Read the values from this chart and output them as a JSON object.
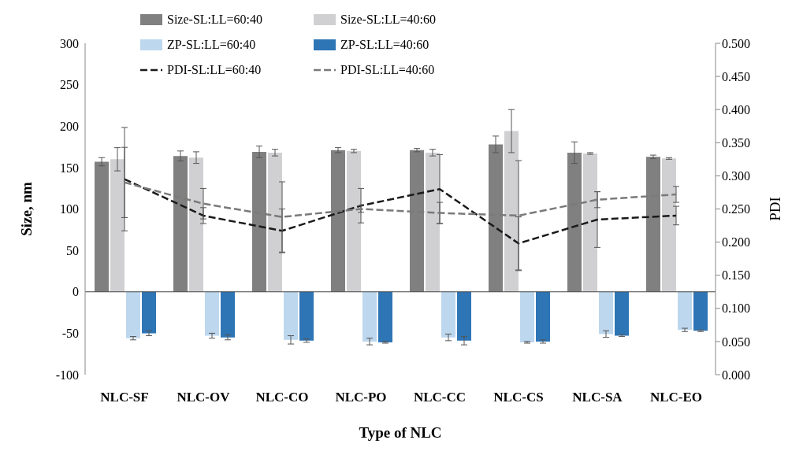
{
  "chart_data": {
    "type": "bar",
    "xlabel": "Type of NLC",
    "ylabel": "Size, nm",
    "y2label": "PDI",
    "categories": [
      "NLC-SF",
      "NLC-OV",
      "NLC-CO",
      "NLC-PO",
      "NLC-CC",
      "NLC-CS",
      "NLC-SA",
      "NLC-EO"
    ],
    "series": [
      {
        "name": "Size-SL:LL=60:40",
        "color": "#808080",
        "values": [
          157,
          164,
          169,
          171,
          171,
          178,
          168,
          163
        ],
        "errors": [
          5,
          6,
          7,
          3,
          2,
          10,
          13,
          2
        ]
      },
      {
        "name": "Size-SL:LL=40:60",
        "color": "#d0d0d2",
        "values": [
          160,
          162,
          168,
          170,
          168,
          194,
          167,
          161
        ],
        "errors": [
          14,
          7,
          4,
          2,
          4,
          26,
          1,
          1
        ]
      },
      {
        "name": "ZP-SL:LL=60:40",
        "color": "#bdd7ee",
        "values": [
          -56,
          -53,
          -58,
          -60,
          -55,
          -61,
          -51,
          -46
        ],
        "errors": [
          2,
          3,
          5,
          4,
          4,
          1,
          4,
          2
        ]
      },
      {
        "name": "ZP-SL:LL=40:60",
        "color": "#2e75b6",
        "values": [
          -50,
          -55,
          -59,
          -61,
          -59,
          -60,
          -53,
          -47
        ],
        "errors": [
          3,
          3,
          2,
          1,
          5,
          2,
          1,
          1
        ]
      },
      {
        "name": "PDI-SL:LL=60:40",
        "type": "line",
        "axis": "y2",
        "color": "#1a1a1a",
        "line_style": "dashed",
        "values": [
          0.295,
          0.24,
          0.217,
          0.255,
          0.28,
          0.198,
          0.234,
          0.24
        ],
        "errors": [
          0.078,
          0.012,
          0.033,
          0.026,
          0.052,
          0.04,
          0.042,
          0.014
        ]
      },
      {
        "name": "PDI-SL:LL=40:60",
        "type": "line",
        "axis": "y2",
        "color": "#7a7a7a",
        "line_style": "dashed",
        "values": [
          0.29,
          0.258,
          0.238,
          0.25,
          0.244,
          0.24,
          0.264,
          0.272
        ],
        "errors": [
          0.053,
          0.023,
          0.053,
          0.005,
          0.016,
          0.083,
          0.012,
          0.012
        ]
      }
    ],
    "ylim": [
      -100,
      300
    ],
    "yticks": [
      -100,
      -50,
      0,
      50,
      100,
      150,
      200,
      250,
      300
    ],
    "y2lim": [
      0,
      0.5
    ],
    "y2ticks": [
      {
        "value": 0,
        "label": "0.000"
      },
      {
        "value": 0.05,
        "label": "0.050"
      },
      {
        "value": 0.1,
        "label": "0.100"
      },
      {
        "value": 0.15,
        "label": "0.150"
      },
      {
        "value": 0.2,
        "label": "0.200"
      },
      {
        "value": 0.25,
        "label": "0.250"
      },
      {
        "value": 0.3,
        "label": "0.300"
      },
      {
        "value": 0.35,
        "label": "0.350"
      },
      {
        "value": 0.4,
        "label": "0.400"
      },
      {
        "value": 0.45,
        "label": "0.450"
      },
      {
        "value": 0.5,
        "label": "0.500"
      }
    ],
    "ref_lines": [
      {
        "axis": "y",
        "value": 0,
        "color": "#444444"
      }
    ],
    "legend": "top",
    "marker": "none",
    "grid": false
  }
}
